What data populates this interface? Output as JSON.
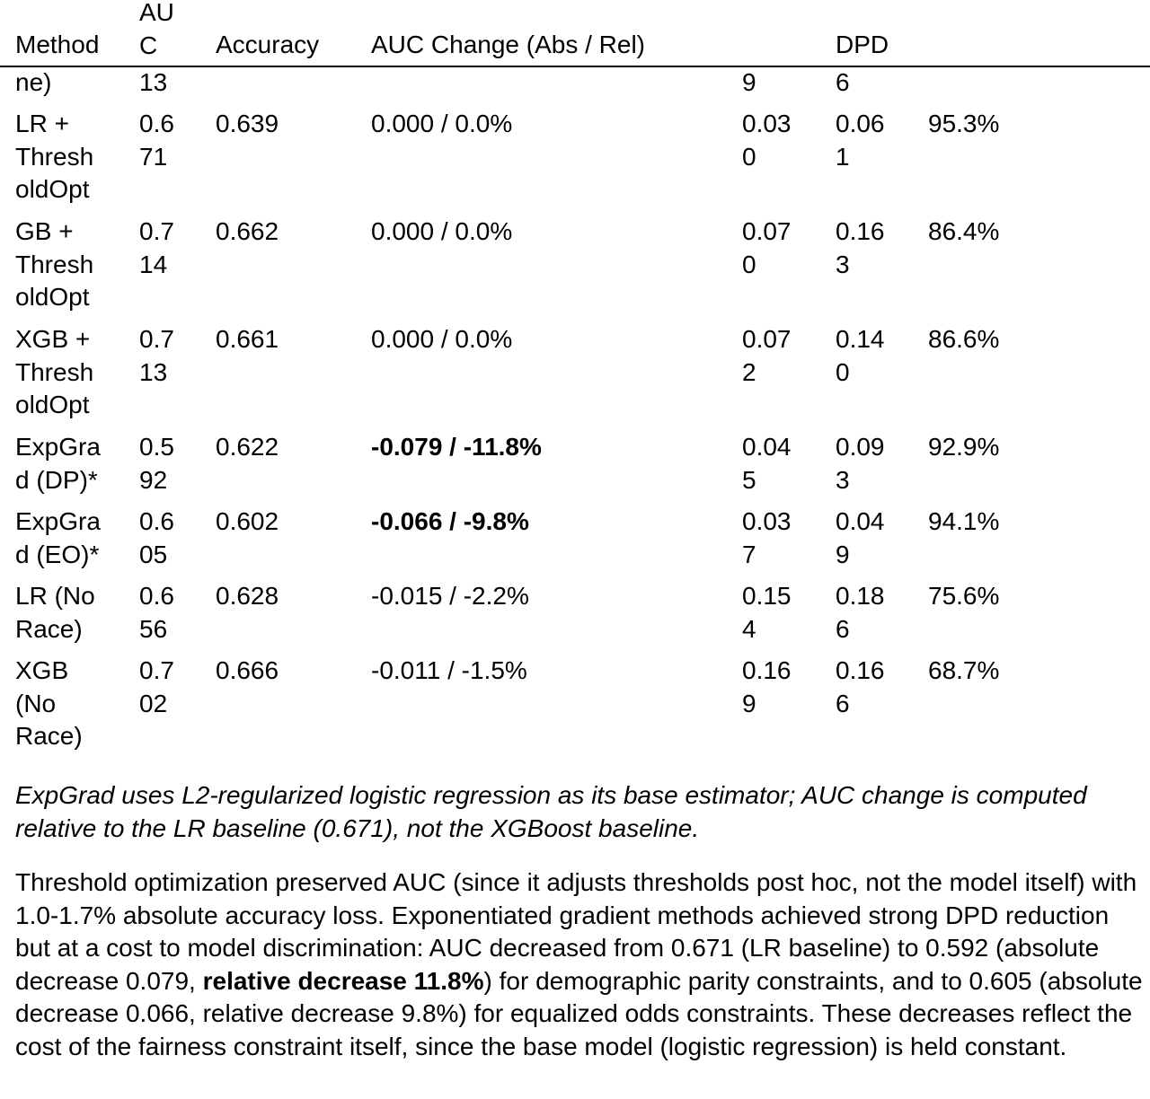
{
  "table": {
    "headers": {
      "method": "Method",
      "auc": "AU\nC",
      "accuracy": "Accuracy",
      "auc_change": "AUC Change (Abs / Rel)",
      "col5": "",
      "dpd": "DPD",
      "col7": ""
    },
    "partial_row": {
      "method": "ne)",
      "auc": "13",
      "accuracy": "",
      "auc_change": "",
      "col5": "9",
      "dpd": "6",
      "col7": ""
    },
    "rows": [
      {
        "method": "LR +\nThresh\noldOpt",
        "auc": "0.6\n71",
        "accuracy": "0.639",
        "auc_change": "0.000 / 0.0%",
        "col5": "0.03\n0",
        "dpd": "0.06\n1",
        "col7": "95.3%"
      },
      {
        "method": "GB +\nThresh\noldOpt",
        "auc": "0.7\n14",
        "accuracy": "0.662",
        "auc_change": "0.000 / 0.0%",
        "col5": "0.07\n0",
        "dpd": "0.16\n3",
        "col7": "86.4%"
      },
      {
        "method": "XGB +\nThresh\noldOpt",
        "auc": "0.7\n13",
        "accuracy": "0.661",
        "auc_change": "0.000 / 0.0%",
        "col5": "0.07\n2",
        "dpd": "0.14\n0",
        "col7": "86.6%"
      },
      {
        "method": "ExpGra\nd (DP)*",
        "auc": "0.5\n92",
        "accuracy": "0.622",
        "auc_change": "-0.079 / -11.8%",
        "col5": "0.04\n5",
        "dpd": "0.09\n3",
        "col7": "92.9%"
      },
      {
        "method": "ExpGra\nd (EO)*",
        "auc": "0.6\n05",
        "accuracy": "0.602",
        "auc_change": "-0.066 / -9.8%",
        "col5": "0.03\n7",
        "dpd": "0.04\n9",
        "col7": "94.1%"
      },
      {
        "method": "LR (No\nRace)",
        "auc": "0.6\n56",
        "accuracy": "0.628",
        "auc_change": "-0.015 / -2.2%",
        "col5": "0.15\n4",
        "dpd": "0.18\n6",
        "col7": "75.6%"
      },
      {
        "method": "XGB\n(No\nRace)",
        "auc": "0.7\n02",
        "accuracy": "0.666",
        "auc_change": "-0.011 / -1.5%",
        "col5": "0.16\n9",
        "dpd": "0.16\n6",
        "col7": "68.7%"
      }
    ]
  },
  "note": "ExpGrad uses L2-regularized logistic regression as its base estimator; AUC change is computed relative to the LR baseline (0.671), not the XGBoost baseline.",
  "paragraph": {
    "part1": "Threshold optimization preserved AUC (since it adjusts thresholds post hoc, not the model itself) with 1.0-1.7% absolute accuracy loss. Exponentiated gradient methods achieved strong DPD reduction but at a cost to model discrimination: AUC decreased from 0.671 (LR baseline) to 0.592 (absolute decrease 0.079, ",
    "bold": "relative decrease 11.8%",
    "part2": ") for demographic parity constraints, and to 0.605 (absolute decrease 0.066, relative decrease 9.8%) for equalized odds constraints. These decreases reflect the cost of the fairness constraint itself, since the base model (logistic regression) is held constant."
  }
}
